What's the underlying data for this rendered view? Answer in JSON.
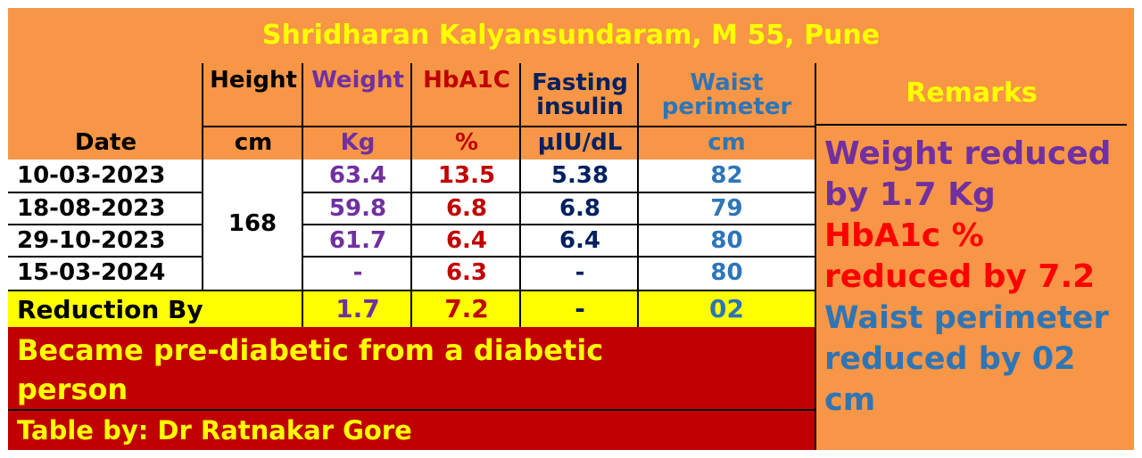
{
  "title": "Shridharan Kalyansundaram, M 55, Pune",
  "headers": {
    "date": "Date",
    "height": "Height",
    "weight": "Weight",
    "hba1c": "HbA1C",
    "fasting_line1": "Fasting",
    "fasting_line2": "insulin",
    "waist_line1": "Waist",
    "waist_line2": "perimeter",
    "remarks": "Remarks"
  },
  "units": {
    "height": "cm",
    "weight": "Kg",
    "hba1c": "%",
    "fasting": "µIU/dL",
    "waist": "cm"
  },
  "height_value": "168",
  "rows": [
    {
      "date": "10-03-2023",
      "weight": "63.4",
      "hba1c": "13.5",
      "fasting": "5.38",
      "waist": "82"
    },
    {
      "date": "18-08-2023",
      "weight": "59.8",
      "hba1c": "6.8",
      "fasting": "6.8",
      "waist": "79"
    },
    {
      "date": "29-10-2023",
      "weight": "61.7",
      "hba1c": "6.4",
      "fasting": "6.4",
      "waist": "80"
    },
    {
      "date": "15-03-2024",
      "weight": "-",
      "hba1c": "6.3",
      "fasting": "-",
      "waist": "80"
    }
  ],
  "reduction": {
    "label": "Reduction By",
    "weight": "1.7",
    "hba1c": "7.2",
    "fasting": "-",
    "waist": "02"
  },
  "conclusion": "Became pre-diabetic from a diabetic person",
  "credit": "Table by: Dr Ratnakar Gore",
  "remarks_text": {
    "weight": "Weight reduced by 1.7 Kg",
    "hba1c": "HbA1c % reduced by 7.2",
    "waist": "Waist perimeter reduced by 02 cm"
  },
  "colors": {
    "background": "#f79646",
    "title_text": "#ffff00",
    "weight": "#7030a0",
    "hba1c": "#c00000",
    "hba1c_bright": "#ff0000",
    "fasting": "#002060",
    "waist": "#2e75b6",
    "reduction_bg": "#ffff00",
    "conclusion_bg": "#c00000"
  }
}
